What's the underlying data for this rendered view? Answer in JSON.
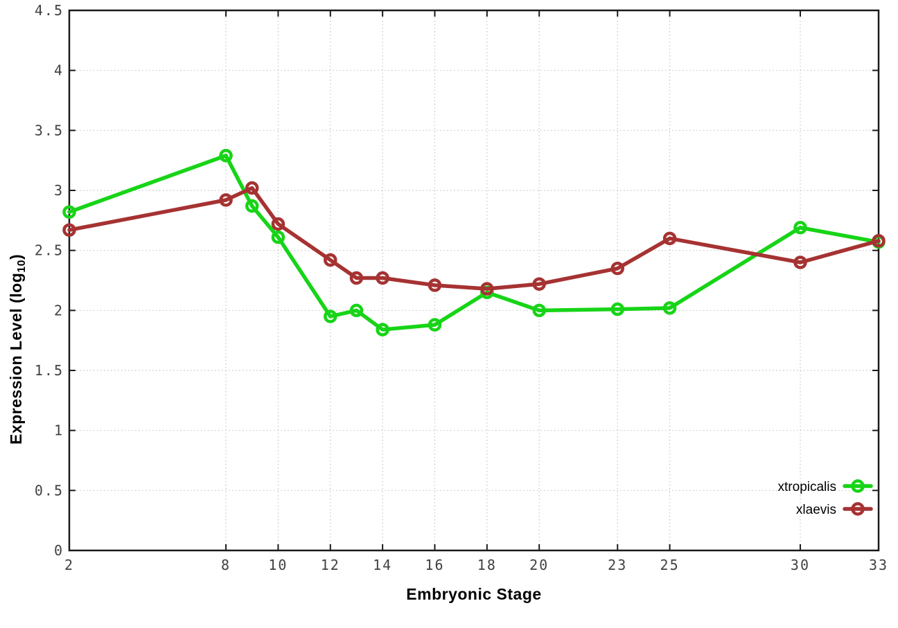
{
  "chart_data": {
    "type": "line",
    "title": "",
    "xlabel": "Embryonic Stage",
    "ylabel": "Expression Level (log10)",
    "ylabel_parts": {
      "pre": "Expression Level (log",
      "sub": "10",
      "post": ")"
    },
    "x": [
      2,
      8,
      9,
      10,
      12,
      13,
      14,
      16,
      18,
      20,
      23,
      25,
      30,
      33
    ],
    "series": [
      {
        "name": "xtropicalis",
        "color": "#17d417",
        "marker": "open-circle",
        "values": [
          2.82,
          3.29,
          2.87,
          2.61,
          1.95,
          2.0,
          1.84,
          1.88,
          2.15,
          2.0,
          2.01,
          2.02,
          2.69,
          2.57
        ]
      },
      {
        "name": "xlaevis",
        "color": "#a63232",
        "marker": "open-circle",
        "values": [
          2.67,
          2.92,
          3.02,
          2.72,
          2.42,
          2.27,
          2.27,
          2.21,
          2.18,
          2.22,
          2.35,
          2.6,
          2.4,
          2.58
        ]
      }
    ],
    "xlim": [
      2,
      33
    ],
    "ylim": [
      0,
      4.5
    ],
    "xticks": [
      2,
      8,
      10,
      12,
      14,
      16,
      18,
      20,
      23,
      25,
      30,
      33
    ],
    "xtick_labels": [
      "2",
      "8",
      "10",
      "12",
      "14",
      "16",
      "18",
      "20",
      "23",
      "25",
      "30",
      "33"
    ],
    "yticks": [
      0,
      0.5,
      1,
      1.5,
      2,
      2.5,
      3,
      3.5,
      4,
      4.5
    ],
    "ytick_labels": [
      "0",
      "0.5",
      "1",
      "1.5",
      "2",
      "2.5",
      "3",
      "3.5",
      "4",
      "4.5"
    ],
    "grid": true,
    "legend_position": "bottom-right",
    "colors": {
      "grid": "#c4c4c4",
      "border": "#1a1a1a",
      "tick_text": "#404040",
      "background": "#ffffff"
    }
  }
}
